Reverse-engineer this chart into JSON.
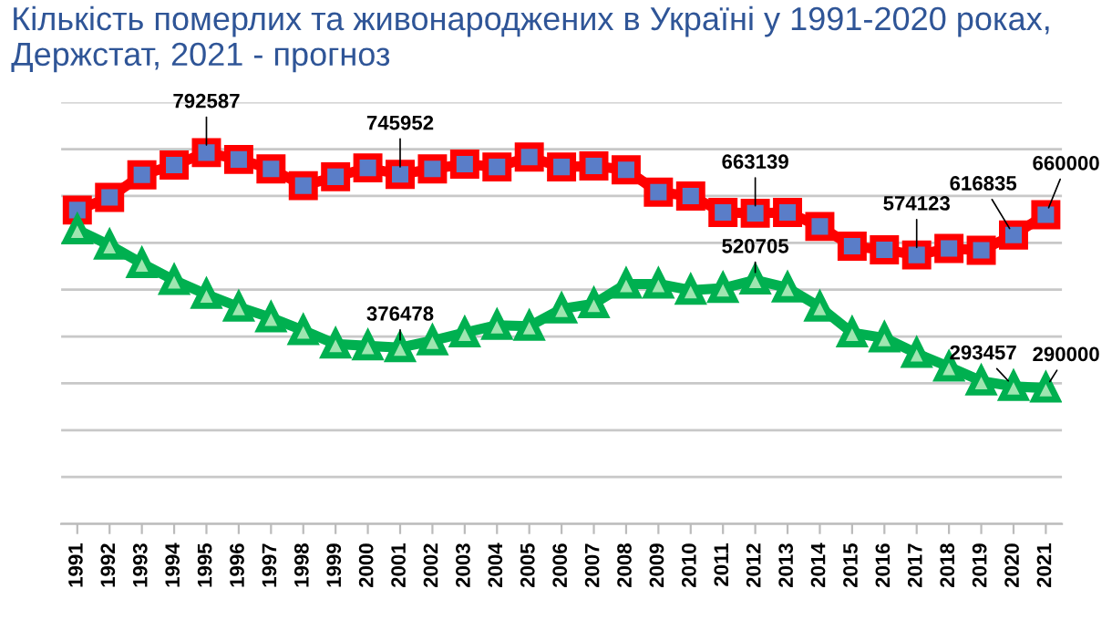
{
  "chart_data": {
    "type": "line",
    "title": "Кількість померлих та живонароджених в Україні у 1991-2020 роках, Держстат, 2021 - прогноз",
    "categories": [
      "1991",
      "1992",
      "1993",
      "1994",
      "1995",
      "1996",
      "1997",
      "1998",
      "1999",
      "2000",
      "2001",
      "2002",
      "2003",
      "2004",
      "2005",
      "2006",
      "2007",
      "2008",
      "2009",
      "2010",
      "2011",
      "2012",
      "2013",
      "2014",
      "2015",
      "2016",
      "2017",
      "2018",
      "2019",
      "2020",
      "2021"
    ],
    "series": [
      {
        "color": "#ff0000",
        "marker": "square",
        "values": [
          670000,
          697000,
          745000,
          766000,
          792587,
          778000,
          758000,
          722000,
          741000,
          760000,
          745952,
          758000,
          768000,
          762000,
          783000,
          762000,
          764000,
          756000,
          708000,
          700000,
          665000,
          663139,
          665000,
          635000,
          593000,
          585000,
          574123,
          588000,
          584000,
          616835,
          660000
        ],
        "value_labels": [
          null,
          null,
          null,
          null,
          "792587",
          null,
          null,
          null,
          null,
          null,
          "745952",
          null,
          null,
          null,
          null,
          null,
          null,
          null,
          null,
          null,
          null,
          "663139",
          null,
          null,
          null,
          null,
          "574123",
          null,
          null,
          "616835",
          "660000"
        ]
      },
      {
        "color": "#00b050",
        "marker": "triangle",
        "values": [
          628000,
          595000,
          556000,
          520000,
          490000,
          463000,
          440000,
          413000,
          384000,
          380000,
          376478,
          391000,
          408000,
          424000,
          422000,
          459000,
          470000,
          512000,
          512000,
          499000,
          503000,
          520705,
          504000,
          463000,
          408000,
          397000,
          364000,
          335000,
          305000,
          293457,
          290000
        ],
        "value_labels": [
          null,
          null,
          null,
          null,
          null,
          null,
          null,
          null,
          null,
          null,
          "376478",
          null,
          null,
          null,
          null,
          null,
          null,
          null,
          null,
          null,
          null,
          "520705",
          null,
          null,
          null,
          null,
          null,
          null,
          null,
          "293457",
          "290000"
        ]
      }
    ],
    "ylim": [
      0,
      900000
    ],
    "yticks": [
      {
        "value": 0,
        "label": null
      },
      {
        "value": 100000,
        "label": null
      },
      {
        "value": 200000,
        "label": null
      },
      {
        "value": 300000,
        "label": null
      },
      {
        "value": 400000,
        "label": null
      },
      {
        "value": 500000,
        "label": null
      },
      {
        "value": 600000,
        "label": null
      },
      {
        "value": 700000,
        "label": null
      },
      {
        "value": 800000,
        "label": null
      },
      {
        "value": 900000,
        "label": null
      }
    ],
    "tick_labels": "x",
    "grid": "y",
    "legend": false,
    "line_style": "solid"
  }
}
